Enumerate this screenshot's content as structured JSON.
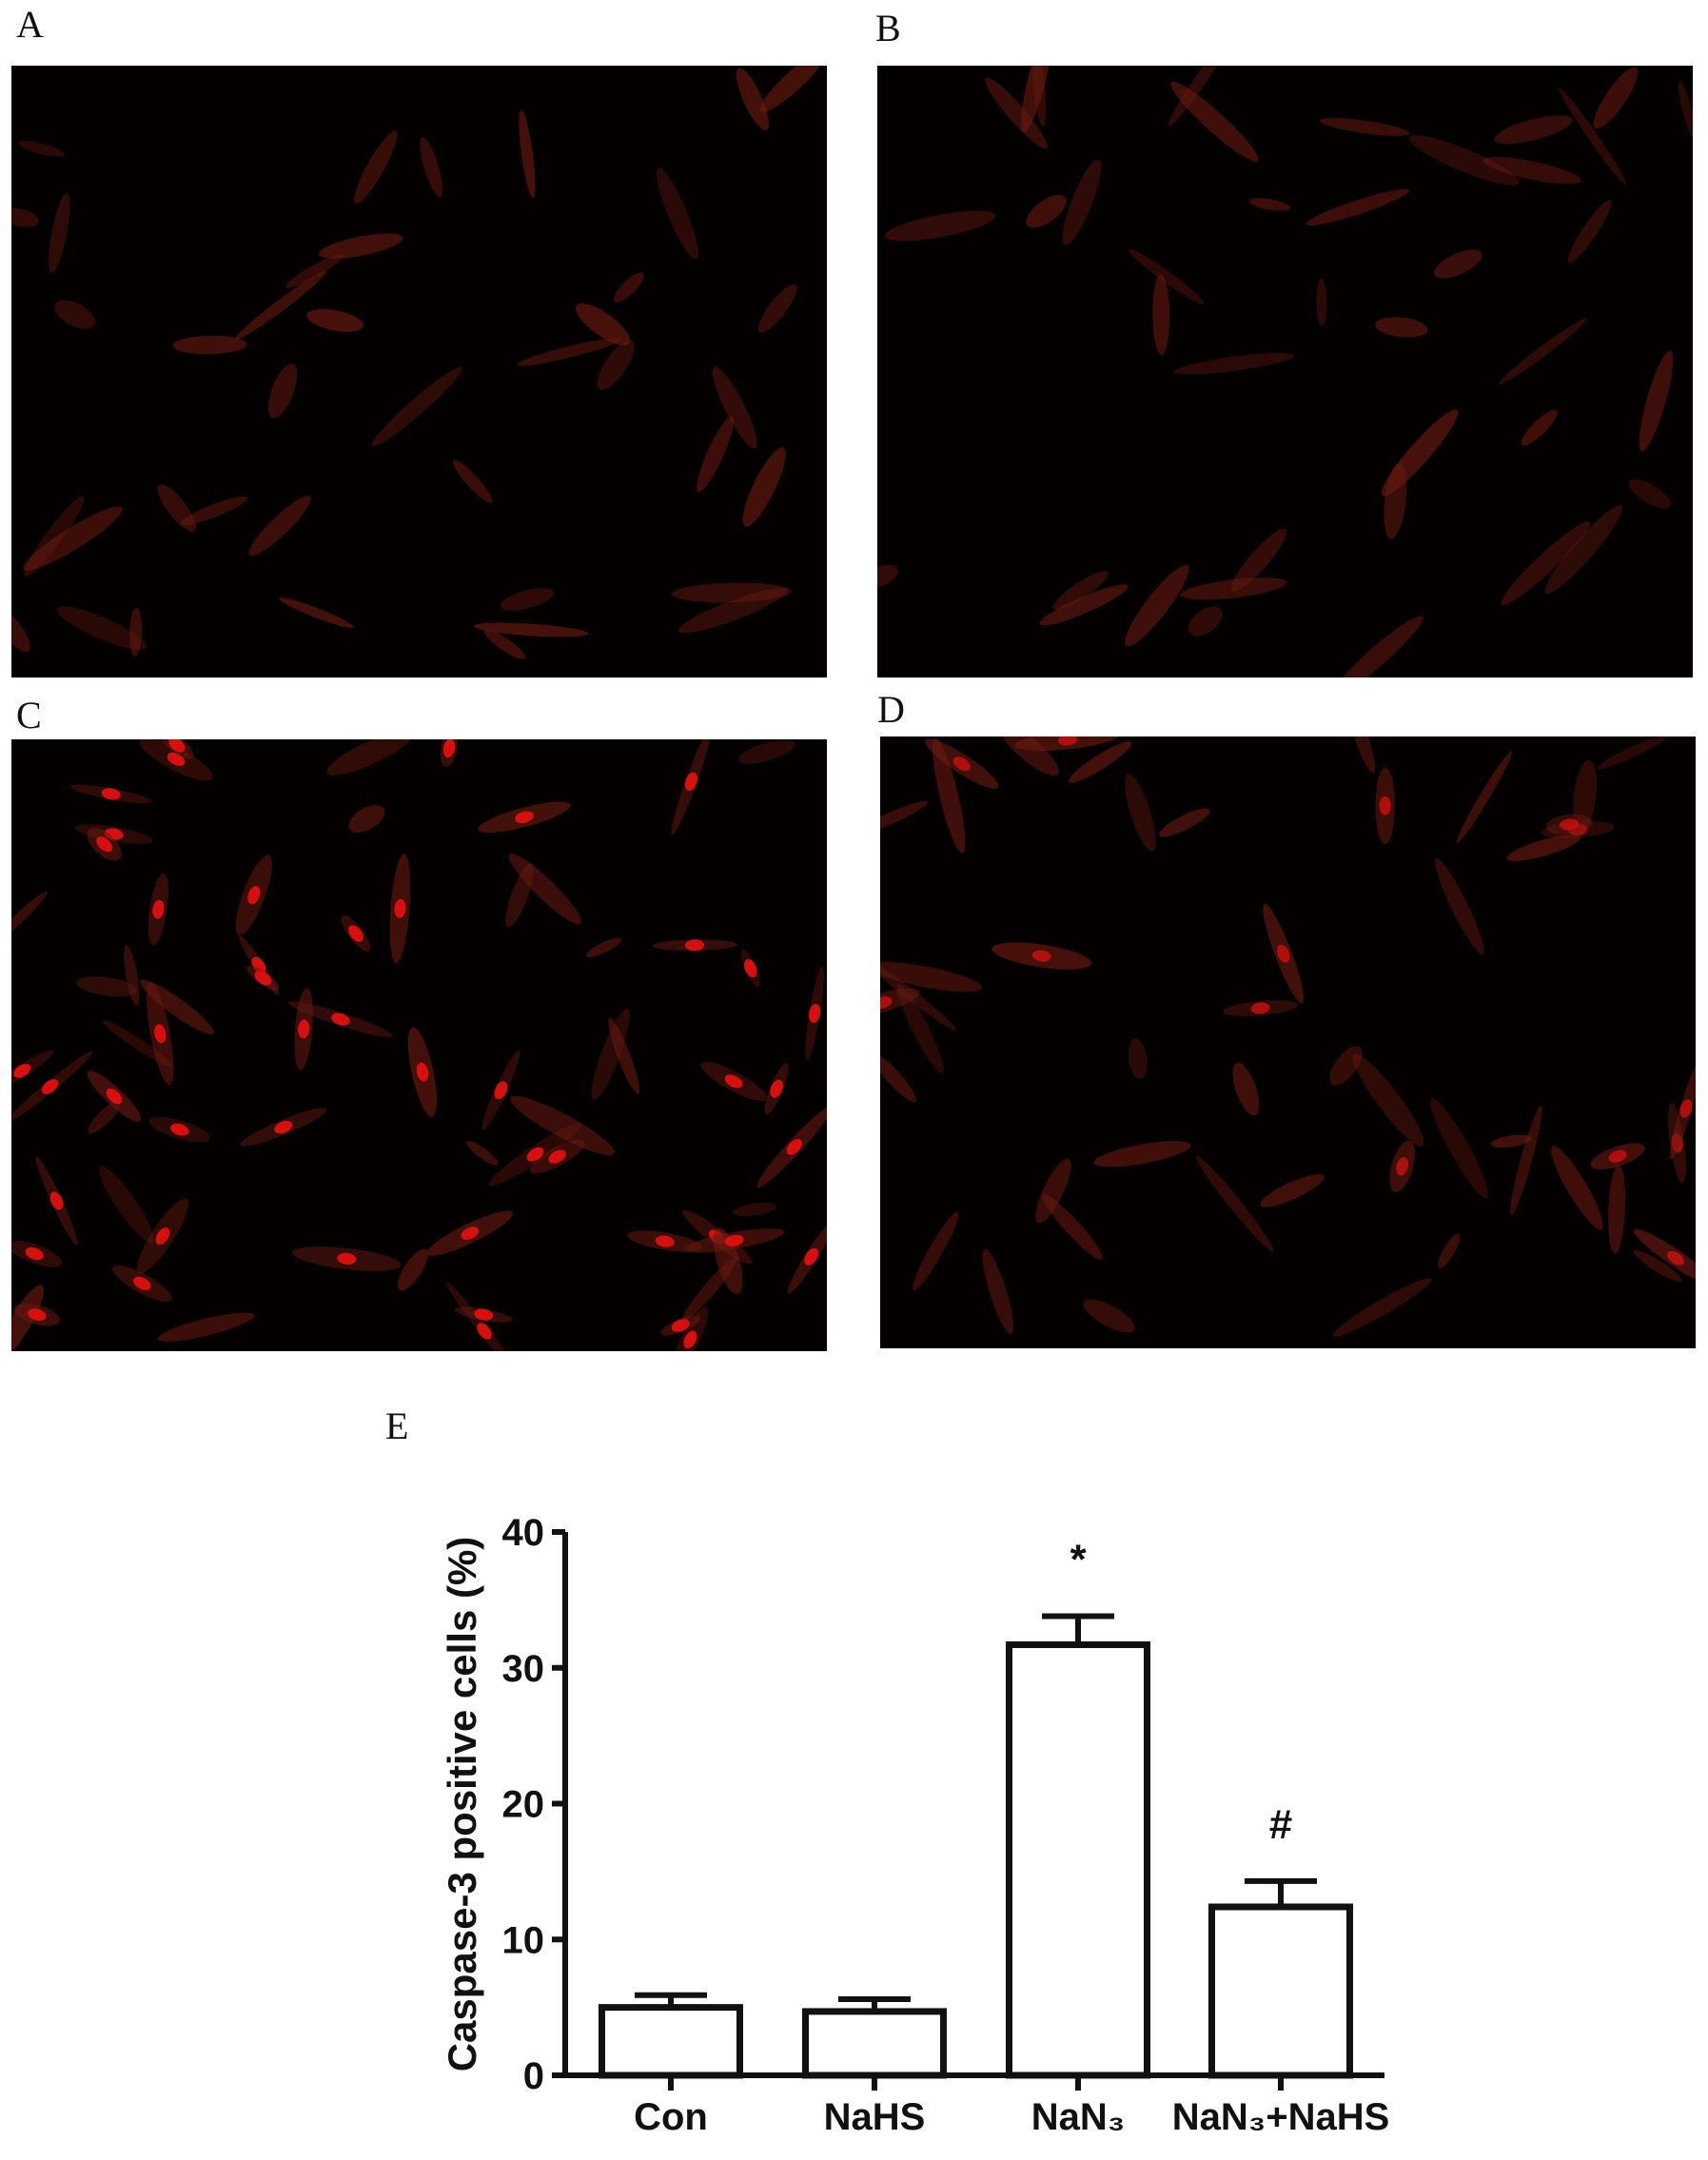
{
  "panels": [
    {
      "label": "A",
      "intensity": "dim"
    },
    {
      "label": "B",
      "intensity": "dim"
    },
    {
      "label": "C",
      "intensity": "bright"
    },
    {
      "label": "D",
      "intensity": "medium"
    }
  ],
  "panel_e_label": "E",
  "colors": {
    "fluorescence": "#e01010",
    "background": "#050000",
    "bars": "#ffffff",
    "stroke": "#111111"
  },
  "chart_data": {
    "type": "bar",
    "title": "",
    "xlabel": "",
    "ylabel": "Caspase-3 positive cells (%)",
    "categories": [
      "Con",
      "NaHS",
      "NaN₃",
      "NaN₃+NaHS"
    ],
    "values": [
      5.0,
      4.7,
      31.7,
      12.4
    ],
    "error_upper": [
      5.9,
      5.6,
      33.8,
      14.3
    ],
    "annotations": [
      "",
      "",
      "*",
      "#"
    ],
    "ylim": [
      0,
      40
    ],
    "yticks": [
      0,
      10,
      20,
      30,
      40
    ],
    "grid": false
  }
}
